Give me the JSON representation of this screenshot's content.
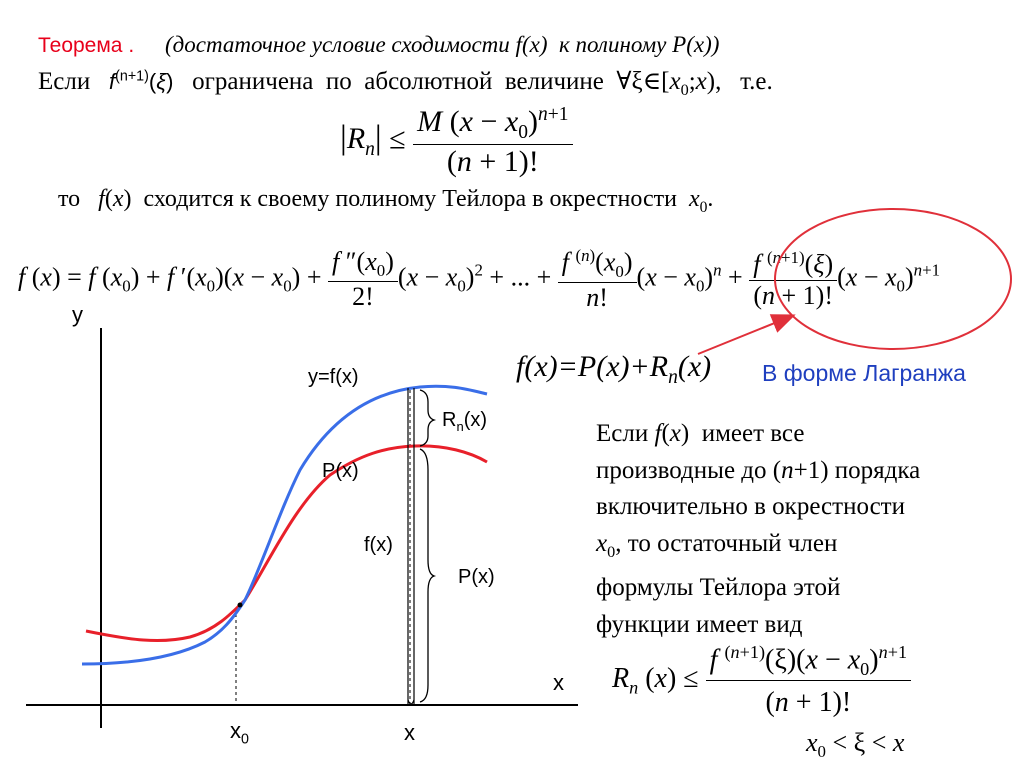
{
  "theorem": {
    "label": "Теорема .",
    "condition": "(достаточное условие сходимости f(x) к полиному P(x))"
  },
  "if_line": {
    "prefix": "Если",
    "derivative": "f(n+1)(ξ)",
    "text": "ограничена по абсолютной величине",
    "quantifier": "∀ξ∈[x0;x),",
    "ie": "т.е."
  },
  "remainder_bound_top": {
    "lhs": "|Rn| ≤",
    "numerator": "M (x − x0)n+1",
    "denominator": "(n + 1)!"
  },
  "conclusion": "то f(x) сходится к своему полиному Тейлора в окрестности x0.",
  "taylor_formula": {
    "lhs": "f(x) = f(x0) + f′(x0)(x − x0) +",
    "term2_num": "f″(x0)",
    "term2_den": "2!",
    "term2_tail": "(x − x0)2 + ... +",
    "termn_num": "f(n)(x0)",
    "termn_den": "n!",
    "termn_tail": "(x − x0)n +",
    "rem_num": "f(n+1)(ξ)",
    "rem_den": "(n + 1)!",
    "rem_tail": "(x − x0)n+1"
  },
  "decomposition": "f(x)=P(x)+Rn(x)",
  "lagrange_label": "В форме Лагранжа",
  "paragraph": [
    "Если f(x) имеет все",
    "производные до (n+1) порядка",
    "включительно в окрестности",
    "x0, то остаточный член",
    "формулы Тейлора этой",
    "функции имеет вид"
  ],
  "remainder_bound_bottom": {
    "lhs": "Rn(x) ≤",
    "numerator": "f(n+1)(ξ)(x − x0)n+1",
    "denominator": "(n + 1)!",
    "interval": "x0 < ξ < x"
  },
  "graph": {
    "y_axis_label": "y",
    "x_axis_label": "x",
    "x0_tick": "x0",
    "x_tick": "x",
    "curve_f_label": "y=f(x)",
    "curve_p_label": "P(x)",
    "rn_label": "Rn(x)",
    "fx_label": "f(x)",
    "px_label": "P(x)",
    "colors": {
      "f_curve": "#3a6ee8",
      "p_curve": "#e8202a",
      "circle": "#e0303a",
      "lagrange_text": "#1f3fbf"
    }
  }
}
